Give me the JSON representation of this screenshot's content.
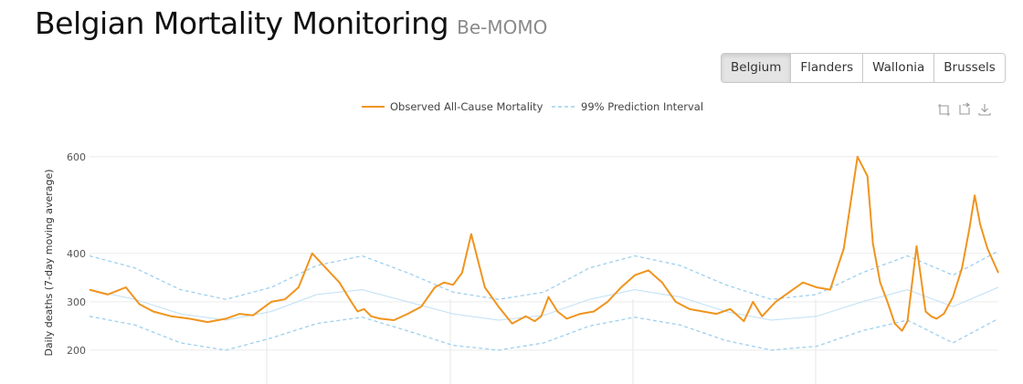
{
  "header": {
    "title": "Belgian Mortality Monitoring",
    "subtitle": "Be-MOMO"
  },
  "regions": {
    "items": [
      {
        "label": "Belgium",
        "active": true
      },
      {
        "label": "Flanders",
        "active": false
      },
      {
        "label": "Wallonia",
        "active": false
      },
      {
        "label": "Brussels",
        "active": false
      }
    ]
  },
  "toolbox": {
    "icons": [
      "zoom-select-icon",
      "zoom-reset-icon",
      "download-icon"
    ]
  },
  "colors": {
    "observed": "#f0941e",
    "interval": "#9ed0ee",
    "baseline": "#bfe0f5",
    "grid": "#ececec"
  },
  "chart_data": {
    "type": "line",
    "title": "",
    "xlabel": "",
    "ylabel": "Daily deaths (7-day moving average)",
    "yticks": [
      200,
      300,
      400,
      600
    ],
    "ylim": [
      130,
      660
    ],
    "xlim": [
      0,
      1
    ],
    "grid": true,
    "legend": {
      "position": "top-center",
      "entries": [
        {
          "name": "Observed All-Cause Mortality",
          "style": "solid"
        },
        {
          "name": "99% Prediction Interval",
          "style": "dashed"
        }
      ]
    },
    "series": [
      {
        "name": "Observed All-Cause Mortality",
        "style": "solid",
        "x": [
          0.0,
          0.02,
          0.04,
          0.055,
          0.07,
          0.09,
          0.11,
          0.13,
          0.15,
          0.165,
          0.18,
          0.2,
          0.215,
          0.23,
          0.245,
          0.26,
          0.275,
          0.288,
          0.295,
          0.302,
          0.31,
          0.32,
          0.335,
          0.35,
          0.365,
          0.38,
          0.39,
          0.4,
          0.41,
          0.42,
          0.435,
          0.45,
          0.465,
          0.48,
          0.49,
          0.497,
          0.505,
          0.515,
          0.525,
          0.54,
          0.555,
          0.57,
          0.585,
          0.6,
          0.615,
          0.63,
          0.645,
          0.66,
          0.675,
          0.69,
          0.705,
          0.72,
          0.73,
          0.74,
          0.755,
          0.77,
          0.785,
          0.8,
          0.815,
          0.83,
          0.845,
          0.856,
          0.862,
          0.87,
          0.878,
          0.886,
          0.894,
          0.9,
          0.91,
          0.92,
          0.926,
          0.932,
          0.94,
          0.95,
          0.96,
          0.968,
          0.974,
          0.98,
          0.988,
          1.0
        ],
        "y": [
          325,
          315,
          330,
          295,
          280,
          270,
          265,
          258,
          265,
          275,
          272,
          300,
          305,
          330,
          400,
          370,
          340,
          300,
          280,
          285,
          270,
          265,
          262,
          275,
          290,
          330,
          340,
          335,
          360,
          440,
          330,
          290,
          255,
          270,
          260,
          270,
          310,
          280,
          265,
          275,
          280,
          300,
          330,
          355,
          365,
          340,
          300,
          285,
          280,
          275,
          285,
          260,
          300,
          270,
          300,
          320,
          340,
          330,
          325,
          410,
          600,
          560,
          420,
          340,
          300,
          255,
          240,
          260,
          415,
          280,
          270,
          265,
          275,
          310,
          370,
          450,
          520,
          460,
          410,
          360
        ]
      },
      {
        "name": "99% Prediction Interval (upper)",
        "style": "dashed",
        "x": [
          0.0,
          0.05,
          0.1,
          0.15,
          0.2,
          0.25,
          0.3,
          0.35,
          0.4,
          0.45,
          0.5,
          0.55,
          0.6,
          0.65,
          0.7,
          0.75,
          0.8,
          0.85,
          0.9,
          0.95,
          1.0
        ],
        "y": [
          395,
          370,
          325,
          305,
          330,
          375,
          395,
          360,
          320,
          305,
          320,
          370,
          395,
          375,
          335,
          305,
          315,
          360,
          395,
          355,
          405
        ]
      },
      {
        "name": "Baseline",
        "style": "solid",
        "x": [
          0.0,
          0.05,
          0.1,
          0.15,
          0.2,
          0.25,
          0.3,
          0.35,
          0.4,
          0.45,
          0.5,
          0.55,
          0.6,
          0.65,
          0.7,
          0.75,
          0.8,
          0.85,
          0.9,
          0.95,
          1.0
        ],
        "y": [
          325,
          305,
          275,
          262,
          280,
          315,
          325,
          300,
          275,
          262,
          272,
          305,
          325,
          310,
          280,
          262,
          270,
          300,
          325,
          290,
          330
        ]
      },
      {
        "name": "99% Prediction Interval (lower)",
        "style": "dashed",
        "x": [
          0.0,
          0.05,
          0.1,
          0.15,
          0.2,
          0.25,
          0.3,
          0.35,
          0.4,
          0.45,
          0.5,
          0.55,
          0.6,
          0.65,
          0.7,
          0.75,
          0.8,
          0.85,
          0.9,
          0.95,
          1.0
        ],
        "y": [
          270,
          252,
          215,
          200,
          225,
          255,
          268,
          240,
          210,
          200,
          215,
          250,
          268,
          252,
          220,
          200,
          208,
          240,
          262,
          215,
          265
        ]
      }
    ]
  }
}
